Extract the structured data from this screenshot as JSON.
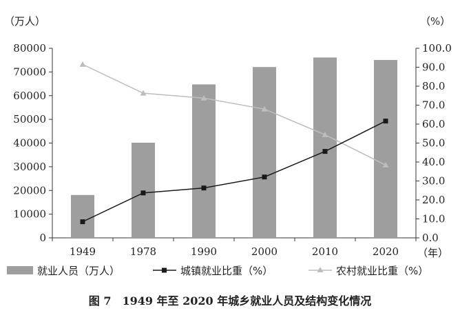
{
  "chart_data": {
    "type": "bar",
    "categories": [
      "1949",
      "1978",
      "1990",
      "2000",
      "2010",
      "2020"
    ],
    "x_unit": "（年）",
    "y_left": {
      "unit": "（万人）",
      "ylim": [
        0,
        80000
      ],
      "ticks": [
        "0",
        "10000",
        "20000",
        "30000",
        "40000",
        "50000",
        "60000",
        "70000",
        "80000"
      ]
    },
    "y_right": {
      "unit": "（%）",
      "ylim": [
        0,
        100
      ],
      "ticks": [
        "0.0",
        "10.0",
        "20.0",
        "30.0",
        "40.0",
        "50.0",
        "60.0",
        "70.0",
        "80.0",
        "90.0",
        "100.0"
      ]
    },
    "series": [
      {
        "name": "就业人员（万人）",
        "type": "bar",
        "axis": "left",
        "color": "#9e9e9e",
        "values": [
          18082,
          40152,
          64749,
          72085,
          76105,
          75064
        ]
      },
      {
        "name": "城镇就业比重（%）",
        "type": "line",
        "axis": "right",
        "color": "#1a1a1a",
        "marker": "square",
        "values": [
          8.5,
          23.7,
          26.3,
          32.1,
          45.6,
          61.6
        ]
      },
      {
        "name": "农村就业比重（%）",
        "type": "line",
        "axis": "right",
        "color": "#bdbdbd",
        "marker": "triangle",
        "values": [
          91.5,
          76.3,
          73.7,
          67.9,
          54.4,
          38.4
        ]
      }
    ],
    "grid": false,
    "legend_position": "bottom"
  },
  "caption": "图 7　1949 年至 2020 年城乡就业人员及结构变化情况"
}
